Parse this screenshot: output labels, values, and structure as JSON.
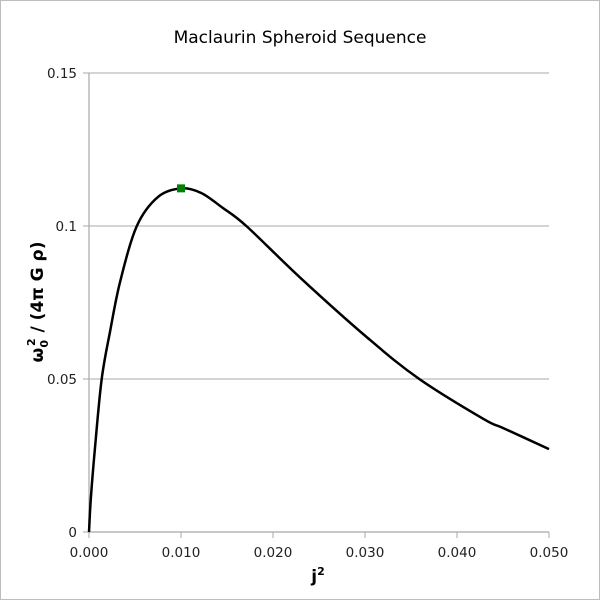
{
  "chart_data": {
    "type": "line",
    "title": "Maclaurin Spheroid Sequence",
    "xlabel": "j",
    "xlabel_sup": "2",
    "ylabel_parts": {
      "omega": "ω",
      "sub": "0",
      "sup": "2",
      "rest": " / (4π G ρ)"
    },
    "xlim": [
      0,
      0.05
    ],
    "ylim": [
      0,
      0.15
    ],
    "x_ticks": [
      "0.000",
      "0.010",
      "0.020",
      "0.030",
      "0.040",
      "0.050"
    ],
    "x_tick_values": [
      0,
      0.01,
      0.02,
      0.03,
      0.04,
      0.05
    ],
    "y_ticks": [
      "0",
      "0.05",
      "0.1",
      "0.15"
    ],
    "y_tick_values": [
      0,
      0.05,
      0.1,
      0.15
    ],
    "grid": "horizontal",
    "series": [
      {
        "color": "#000000",
        "x": [
          0,
          0.0002,
          0.00065,
          0.00138,
          0.0023,
          0.0034,
          0.0052,
          0.0075,
          0.01,
          0.0122,
          0.0145,
          0.0171,
          0.023,
          0.0303,
          0.0359,
          0.0429,
          0.045,
          0.05
        ],
        "y": [
          0,
          0.011,
          0.0275,
          0.05,
          0.0657,
          0.082,
          0.1,
          0.1095,
          0.1123,
          0.1108,
          0.106,
          0.1,
          0.083,
          0.0634,
          0.05,
          0.0369,
          0.034,
          0.0271
        ]
      }
    ],
    "marker": {
      "x": 0.01,
      "y": 0.1123,
      "color": "#008000",
      "shape": "square"
    }
  }
}
